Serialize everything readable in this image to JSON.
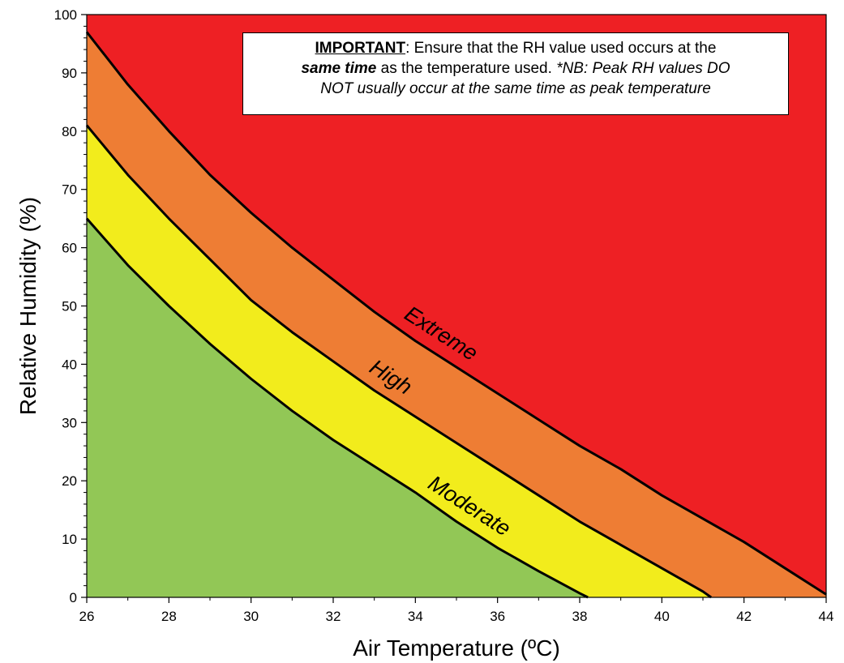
{
  "chart_data": {
    "type": "area",
    "xlabel": "Air Temperature (ºC)",
    "ylabel": "Relative Humidity (%)",
    "xlim": [
      26,
      44
    ],
    "ylim": [
      0,
      100
    ],
    "x_ticks": [
      "26",
      "28",
      "30",
      "32",
      "34",
      "36",
      "38",
      "40",
      "42",
      "44"
    ],
    "y_ticks": [
      "0",
      "10",
      "20",
      "30",
      "40",
      "50",
      "60",
      "70",
      "80",
      "90",
      "100"
    ],
    "grid": false,
    "legend": "none",
    "zones": [
      {
        "name": "Moderate",
        "color": "#92C756"
      },
      {
        "name": "High",
        "color": "#F2EC1C"
      },
      {
        "name": "Extreme",
        "color": "#EE7D34"
      },
      {
        "name": "",
        "color": "#EE2024"
      }
    ],
    "boundary_colors": {
      "line": "#000000"
    },
    "series": [
      {
        "name": "Moderate",
        "x": [
          26,
          27,
          28,
          29,
          30,
          31,
          32,
          33,
          34,
          35,
          36,
          37,
          38,
          38.2
        ],
        "values": [
          65,
          57,
          50,
          43.5,
          37.5,
          32,
          27,
          22.5,
          18,
          13,
          8.5,
          4.5,
          0.7,
          0
        ]
      },
      {
        "name": "High",
        "x": [
          26,
          27,
          28,
          29,
          30,
          31,
          32,
          33,
          34,
          35,
          36,
          37,
          38,
          39,
          40,
          41,
          41.2
        ],
        "values": [
          81,
          72.5,
          65,
          58,
          51,
          45.5,
          40.5,
          35.5,
          31,
          26.5,
          22,
          17.5,
          13,
          9,
          5,
          1,
          0
        ]
      },
      {
        "name": "Extreme",
        "x": [
          26,
          27,
          28,
          29,
          30,
          31,
          32,
          33,
          34,
          35,
          36,
          37,
          38,
          39,
          40,
          41,
          42,
          43,
          44
        ],
        "values": [
          97,
          88,
          80,
          72.5,
          66,
          60,
          54.5,
          49,
          44,
          39.5,
          35,
          30.5,
          26,
          22,
          17.5,
          13.5,
          9.5,
          5,
          0.5
        ]
      }
    ],
    "annotation": {
      "lead": "IMPORTANT",
      "part1": ": Ensure that the RH value used occurs at the",
      "emph": "same time",
      "part2": " as the temperature used. ",
      "note_line1": "*NB: Peak RH values DO",
      "note_line2": "NOT usually occur at the same time as peak temperature"
    }
  }
}
